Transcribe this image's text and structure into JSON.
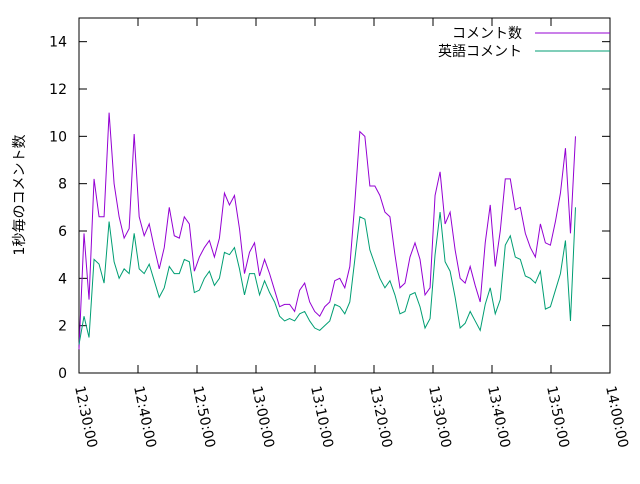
{
  "chart_data": {
    "type": "line",
    "ylabel": "1秒毎のコメント数",
    "x": [
      "12:30:00",
      "12:30:51",
      "12:31:42",
      "12:32:33",
      "12:33:24",
      "12:34:15",
      "12:35:06",
      "12:35:57",
      "12:36:48",
      "12:37:39",
      "12:38:30",
      "12:39:21",
      "12:40:12",
      "12:41:03",
      "12:41:54",
      "12:42:45",
      "12:43:36",
      "12:44:27",
      "12:45:18",
      "12:46:09",
      "12:47:00",
      "12:47:51",
      "12:48:42",
      "12:49:33",
      "12:50:24",
      "12:51:15",
      "12:52:06",
      "12:52:57",
      "12:53:48",
      "12:54:39",
      "12:55:30",
      "12:56:21",
      "12:57:12",
      "12:58:03",
      "12:58:54",
      "12:59:45",
      "13:00:36",
      "13:01:27",
      "13:02:18",
      "13:03:09",
      "13:04:00",
      "13:04:51",
      "13:05:42",
      "13:06:33",
      "13:07:24",
      "13:08:15",
      "13:09:06",
      "13:09:57",
      "13:10:48",
      "13:11:39",
      "13:12:30",
      "13:13:21",
      "13:14:12",
      "13:15:03",
      "13:15:54",
      "13:16:45",
      "13:17:36",
      "13:18:27",
      "13:19:18",
      "13:20:09",
      "13:21:00",
      "13:21:51",
      "13:22:42",
      "13:23:33",
      "13:24:24",
      "13:25:15",
      "13:26:06",
      "13:26:57",
      "13:27:48",
      "13:28:39",
      "13:29:30",
      "13:30:21",
      "13:31:12",
      "13:32:03",
      "13:32:54",
      "13:33:45",
      "13:34:36",
      "13:35:27",
      "13:36:18",
      "13:37:09",
      "13:38:00",
      "13:38:51",
      "13:39:42",
      "13:40:33",
      "13:41:24",
      "13:42:15",
      "13:43:06",
      "13:43:57",
      "13:44:48",
      "13:45:39",
      "13:46:30",
      "13:47:21",
      "13:48:12",
      "13:49:03",
      "13:49:54",
      "13:50:45",
      "13:51:36",
      "13:52:27",
      "13:53:18",
      "13:54:09"
    ],
    "series": [
      {
        "name": "コメント数",
        "color": "#9400d3",
        "values": [
          1.0,
          5.9,
          3.1,
          8.2,
          6.6,
          6.6,
          11.0,
          8.0,
          6.6,
          5.7,
          6.1,
          10.1,
          6.6,
          5.8,
          6.3,
          5.3,
          4.4,
          5.3,
          7.0,
          5.8,
          5.7,
          6.6,
          6.3,
          4.3,
          4.9,
          5.3,
          5.6,
          4.9,
          5.7,
          7.6,
          7.1,
          7.5,
          6.1,
          4.2,
          5.1,
          5.5,
          4.1,
          4.8,
          4.2,
          3.5,
          2.8,
          2.9,
          2.9,
          2.6,
          3.5,
          3.8,
          3.0,
          2.6,
          2.4,
          2.8,
          3.0,
          3.9,
          4.0,
          3.6,
          4.5,
          7.2,
          10.2,
          10.0,
          7.9,
          7.9,
          7.5,
          6.8,
          6.6,
          5.0,
          3.6,
          3.8,
          4.9,
          5.5,
          4.8,
          3.3,
          3.6,
          7.5,
          8.5,
          6.3,
          6.8,
          5.2,
          4.0,
          3.8,
          4.5,
          3.7,
          3.0,
          5.5,
          7.1,
          4.5,
          6.0,
          8.2,
          8.2,
          6.9,
          7.0,
          5.9,
          5.3,
          4.9,
          6.3,
          5.5,
          5.4,
          6.4,
          7.6,
          9.5,
          5.9,
          10.0
        ]
      },
      {
        "name": "英語コメント",
        "color": "#009e73",
        "values": [
          1.2,
          2.4,
          1.5,
          4.8,
          4.6,
          3.8,
          6.4,
          4.7,
          4.0,
          4.4,
          4.2,
          5.9,
          4.4,
          4.2,
          4.6,
          3.9,
          3.2,
          3.6,
          4.5,
          4.2,
          4.2,
          4.8,
          4.7,
          3.4,
          3.5,
          4.0,
          4.3,
          3.7,
          4.0,
          5.1,
          5.0,
          5.3,
          4.4,
          3.3,
          4.2,
          4.2,
          3.3,
          3.9,
          3.4,
          3.0,
          2.4,
          2.2,
          2.3,
          2.2,
          2.5,
          2.6,
          2.2,
          1.9,
          1.8,
          2.0,
          2.2,
          2.9,
          2.8,
          2.5,
          3.0,
          4.8,
          6.6,
          6.5,
          5.2,
          4.6,
          4.0,
          3.6,
          3.9,
          3.3,
          2.5,
          2.6,
          3.3,
          3.4,
          2.8,
          1.9,
          2.3,
          5.0,
          6.8,
          4.7,
          4.3,
          3.2,
          1.9,
          2.1,
          2.6,
          2.2,
          1.8,
          2.9,
          3.6,
          2.5,
          3.1,
          5.4,
          5.8,
          4.9,
          4.8,
          4.1,
          4.0,
          3.8,
          4.3,
          2.7,
          2.8,
          3.5,
          4.2,
          5.6,
          2.2,
          7.0
        ]
      }
    ],
    "xlim": [
      "12:30:00",
      "14:00:00"
    ],
    "xticks": [
      "12:30:00",
      "12:40:00",
      "12:50:00",
      "13:00:00",
      "13:10:00",
      "13:20:00",
      "13:30:00",
      "13:40:00",
      "13:50:00",
      "14:00:00"
    ],
    "ylim": [
      0,
      15
    ],
    "yticks": [
      0,
      2,
      4,
      6,
      8,
      10,
      12,
      14
    ],
    "legend": "top-right"
  }
}
